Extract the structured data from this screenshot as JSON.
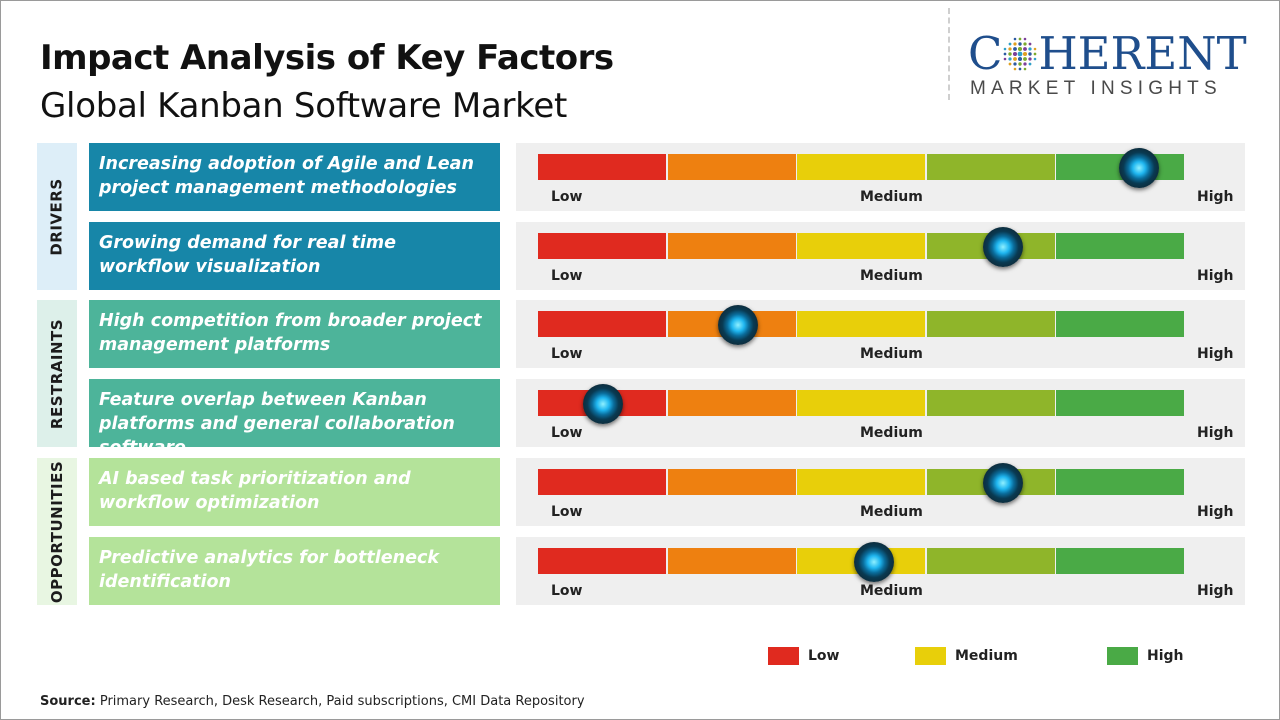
{
  "header": {
    "title": "Impact Analysis of Key Factors",
    "subtitle": "Global Kanban Software Market"
  },
  "logo": {
    "main_pre": "C",
    "main_post": "HERENT",
    "sub": "MARKET INSIGHTS",
    "colors": {
      "text": "#1f4e8c",
      "sub": "#4a4a4a"
    }
  },
  "groups": [
    {
      "label": "DRIVERS",
      "bg": "#ddeef8"
    },
    {
      "label": "RESTRAINTS",
      "bg": "#ddf0ea"
    },
    {
      "label": "OPPORTUNITIES",
      "bg": "#e8f6e2"
    }
  ],
  "scale": {
    "low": "Low",
    "medium": "Medium",
    "high": "High",
    "segment_colors": [
      "#e02a1f",
      "#ee8010",
      "#e8cf0a",
      "#8fb52a",
      "#4aaa46"
    ]
  },
  "chart_data": {
    "type": "bar",
    "title": "Impact Analysis of Key Factors",
    "subtitle": "Global Kanban Software Market",
    "scale_labels": [
      "Low",
      "Medium",
      "High"
    ],
    "ylim": [
      0,
      1
    ],
    "factors": [
      {
        "group": "DRIVERS",
        "text": "Increasing adoption of Agile and Lean project management methodologies",
        "impact": 0.93,
        "box_color": "#1786a8"
      },
      {
        "group": "DRIVERS",
        "text": "Growing demand for real time workflow visualization",
        "impact": 0.72,
        "box_color": "#1786a8"
      },
      {
        "group": "RESTRAINTS",
        "text": "High competition from broader project management platforms",
        "impact": 0.31,
        "box_color": "#4db49a"
      },
      {
        "group": "RESTRAINTS",
        "text": "Feature overlap between Kanban platforms and general collaboration software",
        "impact": 0.1,
        "box_color": "#4db49a"
      },
      {
        "group": "OPPORTUNITIES",
        "text": "AI based task prioritization and workflow optimization",
        "impact": 0.72,
        "box_color": "#b4e39a"
      },
      {
        "group": "OPPORTUNITIES",
        "text": "Predictive analytics for bottleneck identification",
        "impact": 0.52,
        "box_color": "#b4e39a"
      }
    ]
  },
  "legend": [
    {
      "label": "Low",
      "color": "#e02a1f"
    },
    {
      "label": "Medium",
      "color": "#e8cf0a"
    },
    {
      "label": "High",
      "color": "#4aaa46"
    }
  ],
  "source": {
    "prefix": "Source:",
    "text": "Primary Research, Desk Research, Paid subscriptions, CMI Data Repository"
  }
}
